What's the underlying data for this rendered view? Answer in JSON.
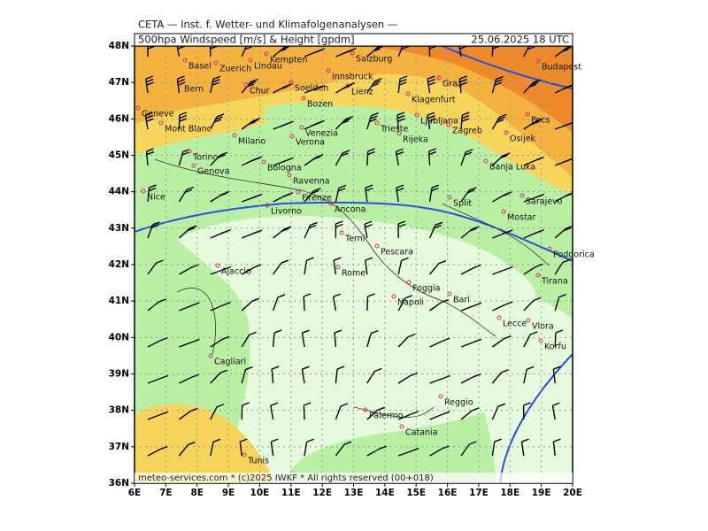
{
  "header": {
    "title": "CETA — Inst. f. Wetter- und Klimafolgenanalysen —",
    "product": "500hpa Windspeed [m/s] & Height [gpdm]",
    "valid": "25.06.2025 18 UTC"
  },
  "lat_labels": [
    "48N",
    "47N",
    "46N",
    "45N",
    "44N",
    "43N",
    "42N",
    "41N",
    "40N",
    "39N",
    "38N",
    "37N",
    "36N"
  ],
  "lon_labels": [
    "6E",
    "7E",
    "8E",
    "9E",
    "10E",
    "11E",
    "12E",
    "13E",
    "14E",
    "15E",
    "16E",
    "17E",
    "18E",
    "19E",
    "20E"
  ],
  "cities": [
    "Kempten",
    "Salzburg",
    "Basel",
    "Zuerich",
    "Lindau",
    "Innsbruck",
    "Bern",
    "Chur",
    "Soelden",
    "Lienz",
    "Graz",
    "Budapest",
    "Bozen",
    "Klagenfurt",
    "Ljubljana",
    "Geneve",
    "Mont Blanc",
    "Pecs",
    "Milano",
    "Verona",
    "Venezia",
    "Trieste",
    "Rijeka",
    "Zagreb",
    "Osijek",
    "Torino",
    "Banja Luka",
    "Genova",
    "Bologna",
    "Ravenna",
    "Sarajevo",
    "Nice",
    "Firenze",
    "Livorno",
    "Ancona",
    "Split",
    "Mostar",
    "Terni",
    "Pescara",
    "Podgorica",
    "Ajaccio",
    "Rome",
    "Tirana",
    "Foggia",
    "Bari",
    "Napoli",
    "Lecce",
    "Vlora",
    "Korfu",
    "Cagliari",
    "Reggio",
    "Palermo",
    "Catania",
    "Tunis"
  ],
  "footer": "meteo-services.com * (c)2025 IWKF * All rights reserved (00+018)"
}
